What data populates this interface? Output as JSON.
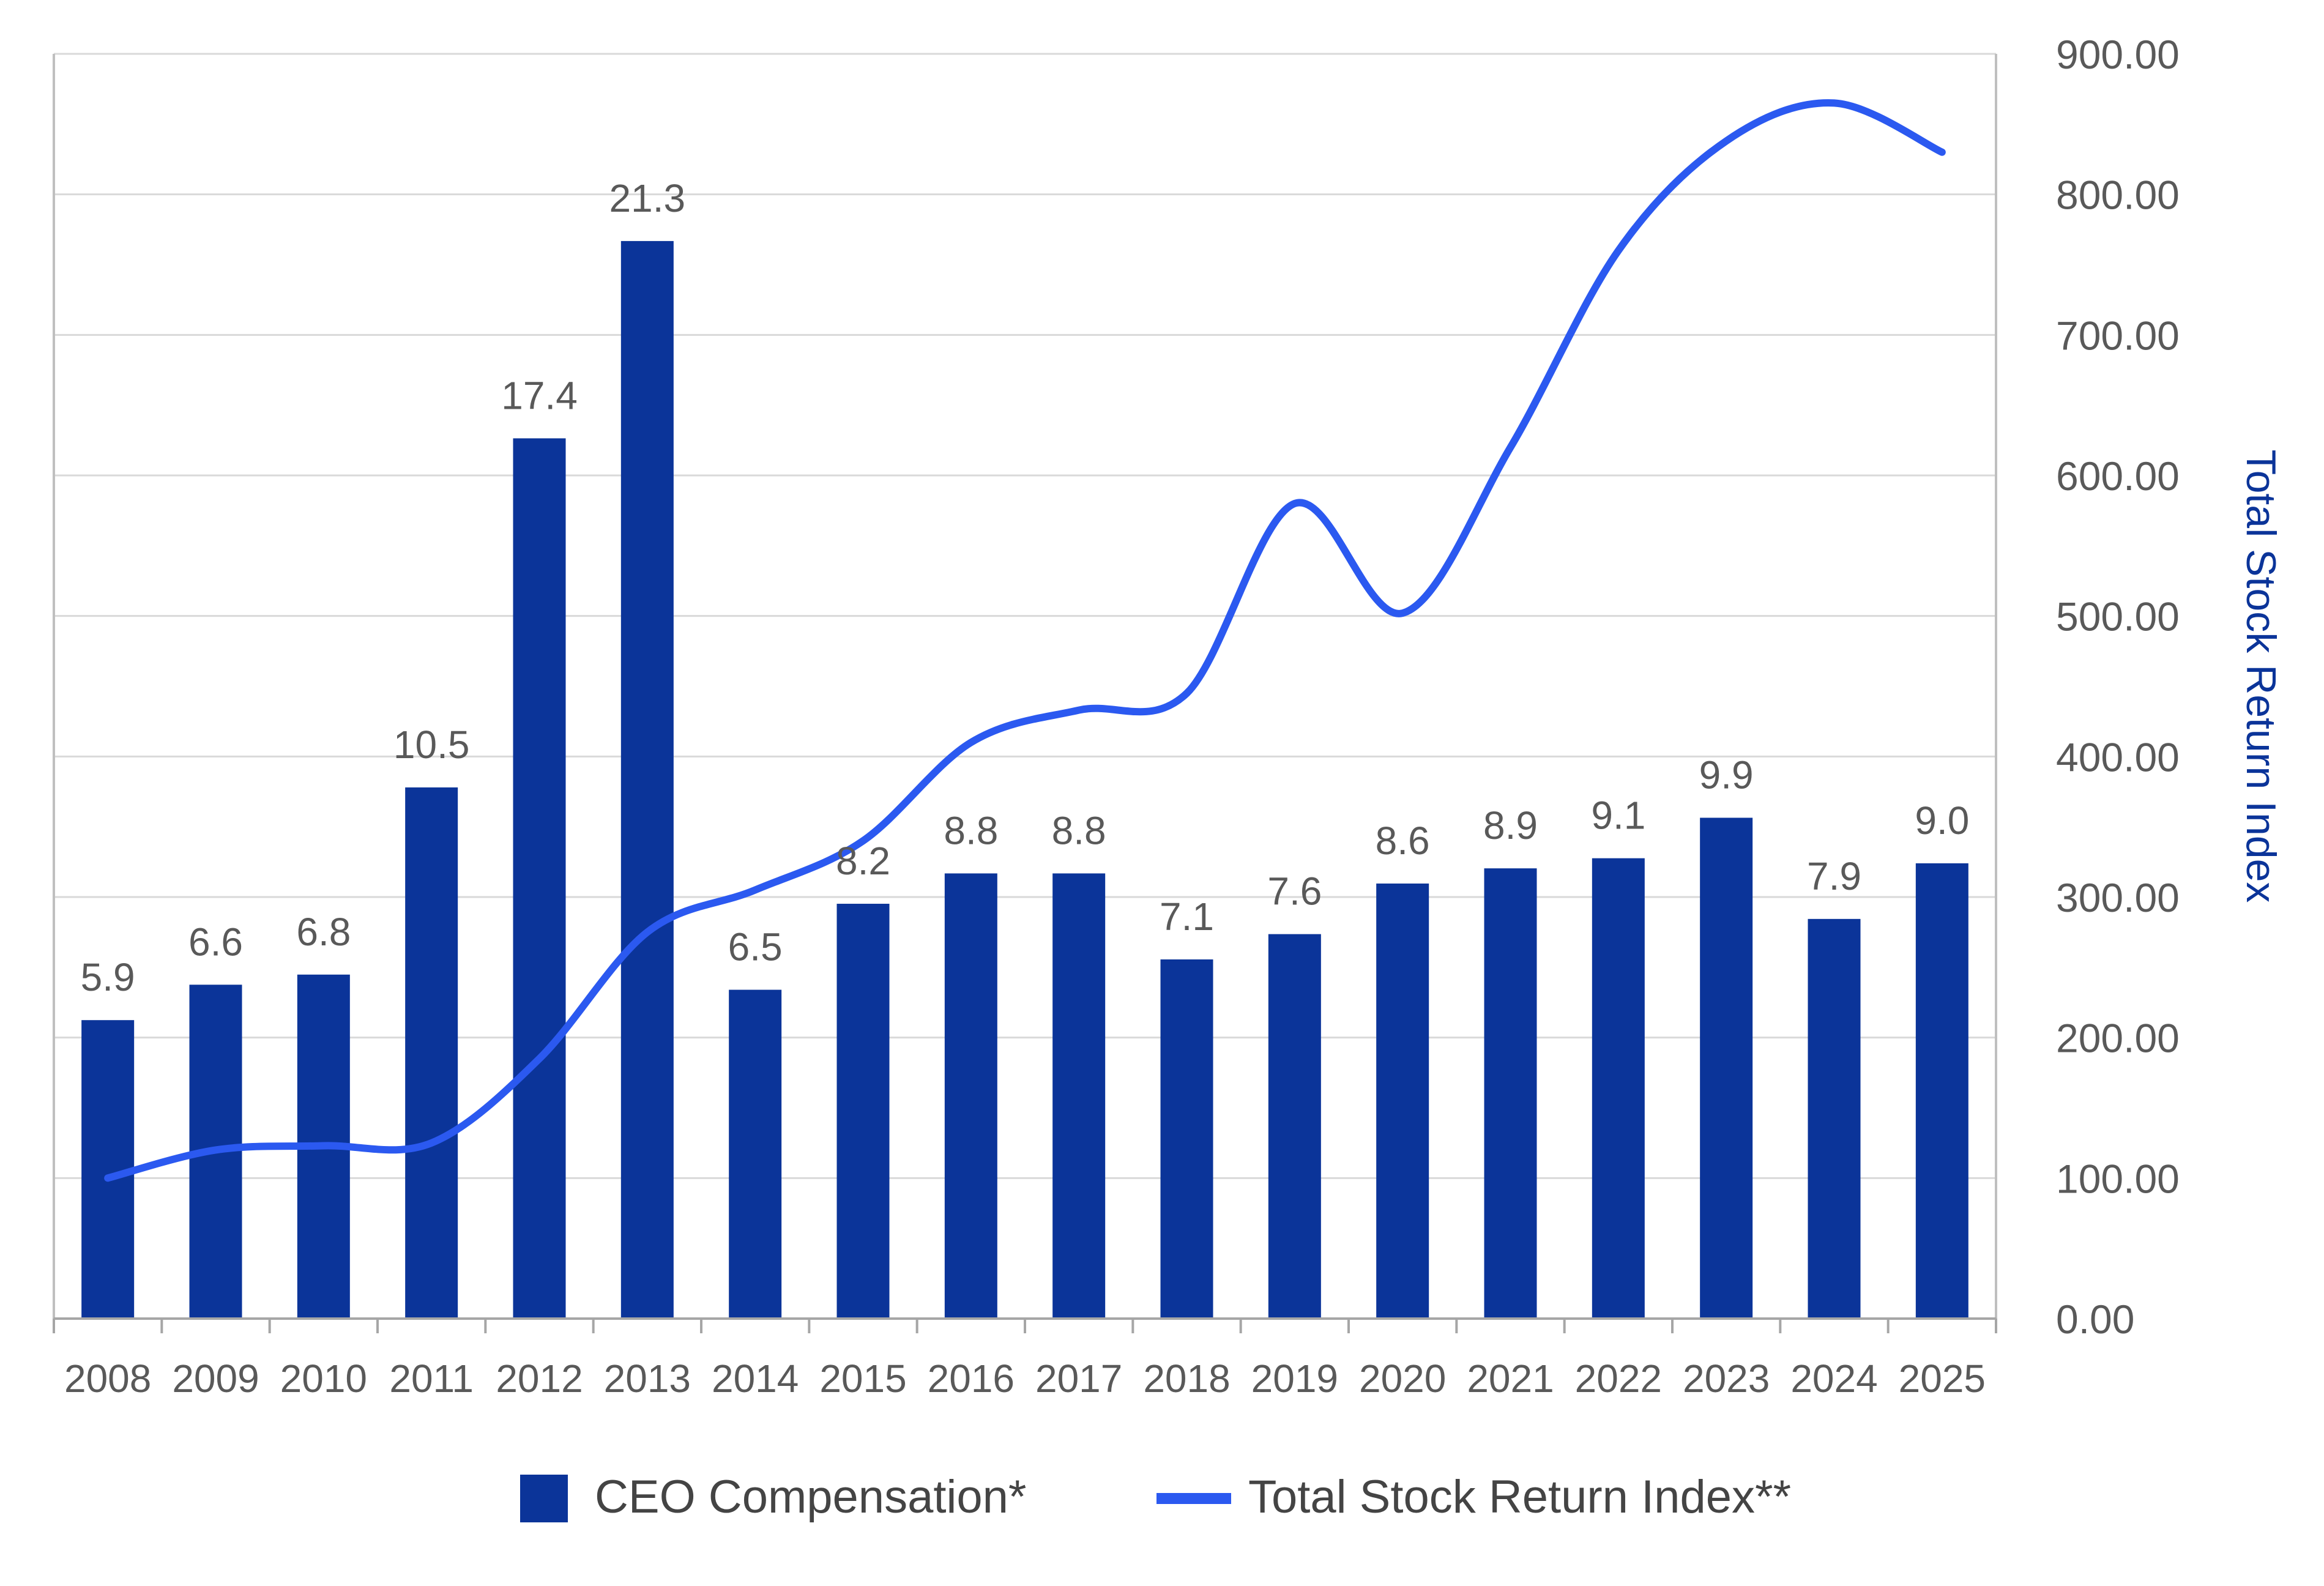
{
  "chart_data": {
    "type": "bar",
    "categories": [
      "2008",
      "2009",
      "2010",
      "2011",
      "2012",
      "2013",
      "2014",
      "2015",
      "2016",
      "2017",
      "2018",
      "2019",
      "2020",
      "2021",
      "2022",
      "2023",
      "2024",
      "2025"
    ],
    "series": [
      {
        "name": "CEO Compensation*",
        "kind": "bar",
        "axis": "left",
        "color": "#0B3499",
        "values": [
          5.9,
          6.6,
          6.8,
          10.5,
          17.4,
          21.3,
          6.5,
          8.2,
          8.8,
          8.8,
          7.1,
          7.6,
          8.6,
          8.9,
          9.1,
          9.9,
          7.9,
          9.0
        ],
        "labels": [
          "5.9",
          "6.6",
          "6.8",
          "10.5",
          "17.4",
          "21.3",
          "6.5",
          "8.2",
          "8.8",
          "8.8",
          "7.1",
          "7.6",
          "8.6",
          "8.9",
          "9.1",
          "9.9",
          "7.9",
          "9.0"
        ]
      },
      {
        "name": "Total Stock Return Index**",
        "kind": "line",
        "axis": "right",
        "color": "#2B59F0",
        "values": [
          100,
          120,
          123,
          125,
          185,
          275,
          305,
          340,
          410,
          433,
          445,
          580,
          502,
          620,
          760,
          838,
          865,
          830
        ]
      }
    ],
    "left_axis": {
      "range": [
        0,
        25
      ]
    },
    "right_axis": {
      "label": "Total Stock Return Index",
      "label_color": "#0B3499",
      "range": [
        0,
        900
      ],
      "ticks": [
        "0.00",
        "100.00",
        "200.00",
        "300.00",
        "400.00",
        "500.00",
        "600.00",
        "700.00",
        "800.00",
        "900.00"
      ]
    },
    "grid": true,
    "legend_position": "bottom"
  }
}
